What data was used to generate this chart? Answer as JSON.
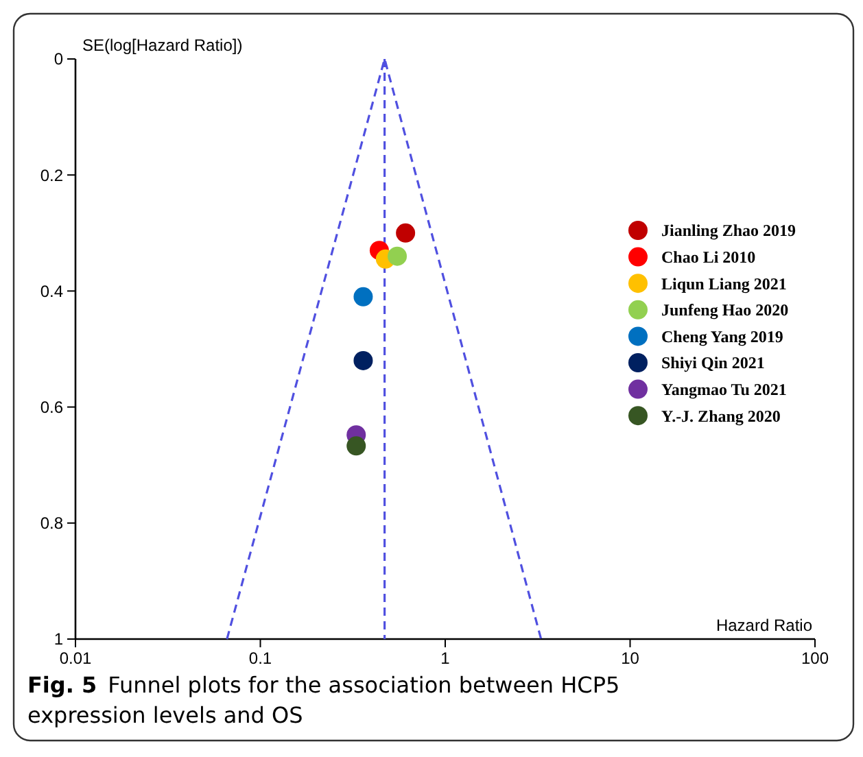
{
  "chart_data": {
    "type": "scatter",
    "xlabel": "Hazard Ratio",
    "ylabel": "SE(log[Hazard Ratio])",
    "log": "x",
    "xlim": [
      0.01,
      100
    ],
    "xticks": [
      0.01,
      0.1,
      1,
      10,
      100
    ],
    "ylim": [
      1,
      0
    ],
    "yticks": [
      0,
      0.2,
      0.4,
      0.6,
      0.8,
      1
    ],
    "grid": false,
    "legend": "right",
    "marker": "circle",
    "series": [
      {
        "name": "Jianling Zhao 2019",
        "color": "#c00000",
        "x": [
          0.61
        ],
        "values": [
          0.3
        ]
      },
      {
        "name": "Chao Li 2010",
        "color": "#ff0000",
        "x": [
          0.44
        ],
        "values": [
          0.33
        ]
      },
      {
        "name": "Liqun Liang 2021",
        "color": "#ffc000",
        "x": [
          0.475
        ],
        "values": [
          0.345
        ]
      },
      {
        "name": "Junfeng Hao 2020",
        "color": "#92d050",
        "x": [
          0.55
        ],
        "values": [
          0.34
        ]
      },
      {
        "name": "Cheng Yang 2019",
        "color": "#0070c0",
        "x": [
          0.36
        ],
        "values": [
          0.41
        ]
      },
      {
        "name": "Shiyi Qin 2021",
        "color": "#002060",
        "x": [
          0.36
        ],
        "values": [
          0.52
        ]
      },
      {
        "name": "Yangmao Tu 2021",
        "color": "#7030a0",
        "x": [
          0.33
        ],
        "values": [
          0.648
        ]
      },
      {
        "name": "Y.-J. Zhang 2020",
        "color": "#375623",
        "x": [
          0.33
        ],
        "values": [
          0.667
        ]
      },
      {
        "type": "line",
        "color": "#5050e0",
        "line_style": "dashed",
        "marker": "none",
        "x": [
          0.066,
          0.47,
          3.3
        ],
        "values": [
          1,
          0,
          1
        ]
      }
    ],
    "ref_lines": [
      {
        "axis": "x",
        "value": 0.47,
        "color": "#5050e0",
        "line_style": "dashed"
      }
    ],
    "annotations": [
      "Fig. 5",
      "Funnel plots for the association between HCP5 expression levels and OS"
    ]
  }
}
